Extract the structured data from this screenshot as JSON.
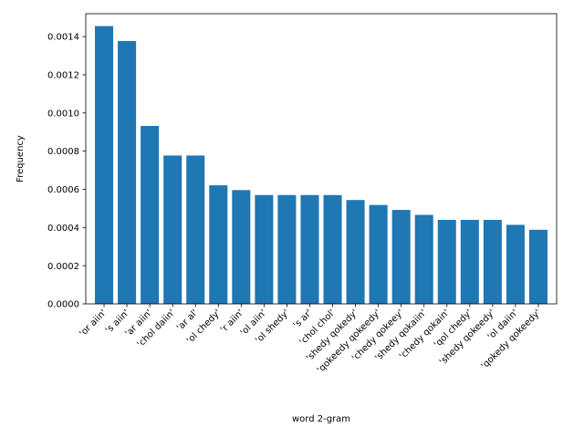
{
  "chart_data": {
    "type": "bar",
    "title": "",
    "xlabel": "word 2-gram",
    "ylabel": "Frequency",
    "ylim": [
      0,
      0.00152
    ],
    "yticks": [
      0.0,
      0.0002,
      0.0004,
      0.0006,
      0.0008,
      0.001,
      0.0012,
      0.0014
    ],
    "ytick_labels": [
      "0.0000",
      "0.0002",
      "0.0004",
      "0.0006",
      "0.0008",
      "0.0010",
      "0.0012",
      "0.0014"
    ],
    "bar_color": "#1f77b4",
    "grid": false,
    "legend": "none",
    "categories": [
      "'or aiin'",
      "'s aiin'",
      "'ar aiin'",
      "'chol daiin'",
      "'ar al'",
      "'ol chedy'",
      "'r aiin'",
      "'ol aiin'",
      "'ol shedy'",
      "'s ar'",
      "'chol chol'",
      "'shedy qokedy'",
      "'qokeedy qokeedy'",
      "'chedy qokeey'",
      "'shedy qokaiin'",
      "'chedy qokain'",
      "'qol chedy'",
      "'shedy qokeedy'",
      "'ol daiin'",
      "'qokedy qokeedy'"
    ],
    "values": [
      0.001455,
      0.001377,
      0.000932,
      0.000777,
      0.000777,
      0.000621,
      0.000596,
      0.00057,
      0.00057,
      0.00057,
      0.00057,
      0.000544,
      0.000518,
      0.000492,
      0.000466,
      0.00044,
      0.00044,
      0.00044,
      0.000414,
      0.000388
    ]
  }
}
